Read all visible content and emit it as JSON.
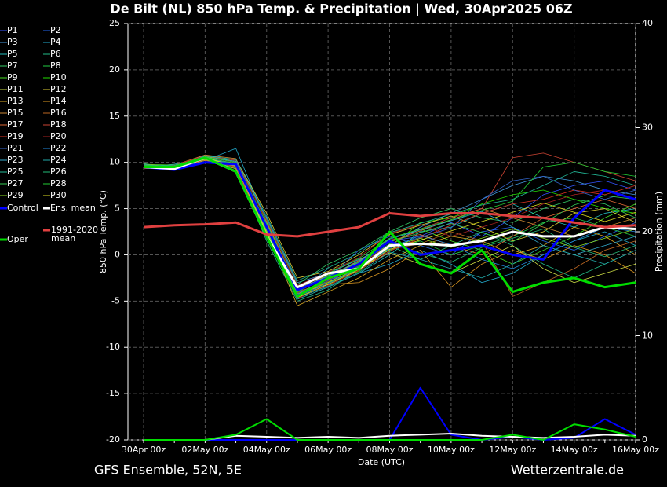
{
  "chart_data": {
    "type": "line",
    "title": "De Bilt  (NL)  850 hPa Temp. & Precipitation | Wed, 30Apr2025 06Z",
    "xlabel": "Date (UTC)",
    "ylabel": "850 hPa Temp. (°C)",
    "y2label": "Precipitation (mm)",
    "source": "GFS Ensemble, 52N, 5E",
    "credit": "Wetterzentrale.de",
    "x": [
      "30Apr 00z",
      null,
      "02May 00z",
      null,
      "04May 00z",
      null,
      "06May 00z",
      null,
      "08May 00z",
      null,
      "10May 00z",
      null,
      "12May 00z",
      null,
      "14May 00z",
      null,
      "16May 00z"
    ],
    "ylim": [
      -20,
      25
    ],
    "yticks": [
      -20,
      -15,
      -10,
      -5,
      0,
      5,
      10,
      15,
      20,
      25
    ],
    "y2lim": [
      0,
      40
    ],
    "y2ticks": [
      0,
      10,
      20,
      30,
      40
    ],
    "grid": true,
    "series": [
      {
        "name": "P1",
        "color": "#3355ff",
        "values": [
          9.8,
          9.5,
          10.4,
          9.6,
          2.5,
          -4.2,
          -3.0,
          -1.0,
          1.5,
          2.0,
          3.5,
          2.0,
          4.0,
          6.5,
          7.5,
          8.0,
          7.0
        ]
      },
      {
        "name": "P2",
        "color": "#2266ee",
        "values": [
          9.6,
          9.4,
          10.6,
          10.0,
          3.2,
          -3.5,
          -2.5,
          0.5,
          2.0,
          1.0,
          0.0,
          2.5,
          3.0,
          1.5,
          0.5,
          2.0,
          3.5
        ]
      },
      {
        "name": "P3",
        "color": "#4499dd",
        "values": [
          9.4,
          9.6,
          10.8,
          10.2,
          4.0,
          -3.0,
          -2.0,
          -0.5,
          1.0,
          3.0,
          4.5,
          6.0,
          7.5,
          8.5,
          8.0,
          7.0,
          6.5
        ]
      },
      {
        "name": "P4",
        "color": "#22aacc",
        "values": [
          9.7,
          9.3,
          10.2,
          11.5,
          3.5,
          -4.0,
          -1.5,
          -2.0,
          -1.0,
          0.5,
          -1.0,
          -3.0,
          -2.0,
          0.0,
          1.5,
          2.5,
          1.0
        ]
      },
      {
        "name": "P5",
        "color": "#22bbbb",
        "values": [
          9.5,
          9.8,
          10.5,
          9.8,
          2.0,
          -4.8,
          -3.5,
          -2.0,
          0.0,
          2.5,
          3.0,
          4.5,
          5.5,
          4.0,
          3.0,
          4.5,
          5.0
        ]
      },
      {
        "name": "P6",
        "color": "#22bb88",
        "values": [
          9.9,
          9.2,
          10.3,
          9.4,
          1.5,
          -5.0,
          -3.8,
          -1.5,
          1.0,
          -0.5,
          1.0,
          2.5,
          1.0,
          -1.0,
          -2.5,
          -1.0,
          0.5
        ]
      },
      {
        "name": "P7",
        "color": "#33cc66",
        "values": [
          9.3,
          9.6,
          10.7,
          10.1,
          3.8,
          -3.2,
          -1.0,
          0.5,
          2.5,
          4.0,
          5.0,
          4.0,
          3.5,
          5.0,
          6.0,
          5.5,
          4.0
        ]
      },
      {
        "name": "P8",
        "color": "#22cc44",
        "values": [
          9.6,
          9.5,
          10.4,
          9.9,
          2.8,
          -4.5,
          -2.8,
          -1.2,
          0.5,
          1.5,
          0.0,
          1.0,
          2.0,
          3.5,
          4.0,
          3.0,
          2.0
        ]
      },
      {
        "name": "P9",
        "color": "#44dd22",
        "values": [
          9.8,
          9.7,
          10.6,
          9.7,
          2.2,
          -3.8,
          -2.2,
          -0.8,
          1.8,
          2.8,
          1.5,
          0.5,
          -1.0,
          0.5,
          2.0,
          4.0,
          5.5
        ]
      },
      {
        "name": "P10",
        "color": "#22dd00",
        "values": [
          9.4,
          9.4,
          10.5,
          9.5,
          3.0,
          -4.0,
          -3.0,
          -1.8,
          0.8,
          3.5,
          4.0,
          5.5,
          6.5,
          7.0,
          6.0,
          5.0,
          4.5
        ]
      },
      {
        "name": "P11",
        "color": "#ccdd44",
        "values": [
          9.7,
          9.6,
          10.3,
          9.3,
          1.8,
          -4.6,
          -2.6,
          -1.4,
          0.2,
          -1.0,
          -2.0,
          -0.5,
          1.0,
          -1.5,
          -3.0,
          -2.0,
          -1.0
        ]
      },
      {
        "name": "P12",
        "color": "#ddcc33",
        "values": [
          9.5,
          9.5,
          10.6,
          10.3,
          4.5,
          -2.5,
          -1.8,
          0.0,
          2.2,
          3.2,
          4.2,
          3.0,
          1.5,
          2.5,
          4.5,
          5.0,
          3.5
        ]
      },
      {
        "name": "P13",
        "color": "#ddaa22",
        "values": [
          9.6,
          9.3,
          10.4,
          9.8,
          2.6,
          -5.5,
          -4.0,
          -2.5,
          -0.5,
          1.0,
          2.0,
          1.5,
          0.0,
          1.0,
          3.0,
          2.0,
          0.0
        ]
      },
      {
        "name": "P14",
        "color": "#dd9922",
        "values": [
          9.8,
          9.5,
          10.2,
          9.6,
          2.0,
          -4.2,
          -3.2,
          -3.0,
          -1.5,
          0.5,
          -3.5,
          -1.0,
          0.5,
          -0.5,
          1.0,
          0.0,
          -2.0
        ]
      },
      {
        "name": "P15",
        "color": "#cc8833",
        "values": [
          9.4,
          9.7,
          10.8,
          10.4,
          3.6,
          -3.6,
          -2.4,
          -0.6,
          1.4,
          2.6,
          3.8,
          5.0,
          4.0,
          3.0,
          2.0,
          3.0,
          4.0
        ]
      },
      {
        "name": "P16",
        "color": "#bb6622",
        "values": [
          9.7,
          9.4,
          10.5,
          9.7,
          2.4,
          -4.4,
          -2.9,
          -1.6,
          0.6,
          1.2,
          2.5,
          1.5,
          -4.5,
          -3.0,
          -1.5,
          0.5,
          1.5
        ]
      },
      {
        "name": "P17",
        "color": "#dd6633",
        "values": [
          9.5,
          9.6,
          10.4,
          9.9,
          3.1,
          -3.9,
          -2.1,
          -0.9,
          1.6,
          2.2,
          1.0,
          0.0,
          2.0,
          4.0,
          5.0,
          6.0,
          5.0
        ]
      },
      {
        "name": "P18",
        "color": "#cc4433",
        "values": [
          9.6,
          9.5,
          10.6,
          10.0,
          2.9,
          -4.1,
          -2.7,
          -1.1,
          1.1,
          2.8,
          4.0,
          5.0,
          10.5,
          11.0,
          10.0,
          9.0,
          8.0
        ]
      },
      {
        "name": "P19",
        "color": "#dd3322",
        "values": [
          9.8,
          9.3,
          10.3,
          9.5,
          2.1,
          -4.7,
          -3.3,
          -1.7,
          0.4,
          1.8,
          3.2,
          4.5,
          5.5,
          6.0,
          7.0,
          6.5,
          7.5
        ]
      },
      {
        "name": "P20",
        "color": "#aa2222",
        "values": [
          9.3,
          9.7,
          10.7,
          10.2,
          3.7,
          -3.3,
          -1.9,
          -0.3,
          2.3,
          3.3,
          2.0,
          3.0,
          4.0,
          5.5,
          6.5,
          7.0,
          6.0
        ]
      },
      {
        "name": "P21",
        "color": "#3366cc",
        "values": [
          9.6,
          9.4,
          10.5,
          9.8,
          2.7,
          -4.3,
          -2.8,
          -1.3,
          0.9,
          1.9,
          2.9,
          6.0,
          8.0,
          8.5,
          7.0,
          6.0,
          7.0
        ]
      },
      {
        "name": "P22",
        "color": "#2288dd",
        "values": [
          9.7,
          9.6,
          10.4,
          9.7,
          2.3,
          -4.5,
          -3.1,
          -1.5,
          0.7,
          2.1,
          1.1,
          -0.5,
          -1.5,
          0.0,
          1.5,
          3.0,
          2.5
        ]
      },
      {
        "name": "P23",
        "color": "#33aacc",
        "values": [
          9.5,
          9.5,
          10.6,
          10.1,
          3.3,
          -3.7,
          -2.3,
          -0.7,
          1.7,
          2.7,
          3.7,
          4.7,
          3.0,
          1.0,
          0.0,
          1.0,
          2.0
        ]
      },
      {
        "name": "P24",
        "color": "#22aaaa",
        "values": [
          9.4,
          9.6,
          10.3,
          9.6,
          2.5,
          -4.6,
          -3.4,
          -1.9,
          0.3,
          -0.5,
          -1.5,
          -2.5,
          -1.0,
          1.0,
          0.0,
          -1.0,
          0.5
        ]
      },
      {
        "name": "P25",
        "color": "#22bb99",
        "values": [
          9.8,
          9.4,
          10.7,
          10.3,
          4.2,
          -2.8,
          -1.4,
          0.2,
          2.4,
          3.4,
          4.4,
          5.4,
          6.0,
          7.5,
          9.0,
          8.5,
          7.5
        ]
      },
      {
        "name": "P26",
        "color": "#22bb77",
        "values": [
          9.6,
          9.7,
          10.4,
          9.8,
          2.8,
          -4.2,
          -2.6,
          -1.0,
          1.2,
          0.2,
          -0.8,
          0.8,
          1.8,
          2.8,
          0.8,
          -0.2,
          1.0
        ]
      },
      {
        "name": "P27",
        "color": "#33cc55",
        "values": [
          9.5,
          9.3,
          10.5,
          9.9,
          3.0,
          -4.0,
          -2.4,
          -0.8,
          1.4,
          2.4,
          3.4,
          2.4,
          1.4,
          3.4,
          5.4,
          6.4,
          6.0
        ]
      },
      {
        "name": "P28",
        "color": "#22cc33",
        "values": [
          9.7,
          9.5,
          10.6,
          10.0,
          3.4,
          -3.6,
          -2.0,
          -0.4,
          1.8,
          2.8,
          3.8,
          4.8,
          5.8,
          9.5,
          10.0,
          9.0,
          8.5
        ]
      },
      {
        "name": "P29",
        "color": "#88dd22",
        "values": [
          9.4,
          9.6,
          10.3,
          9.7,
          2.6,
          -4.4,
          -3.0,
          -1.4,
          0.8,
          1.8,
          0.8,
          1.8,
          2.8,
          1.8,
          0.8,
          1.8,
          2.8
        ]
      },
      {
        "name": "P30",
        "color": "#dddd22",
        "values": [
          9.6,
          9.4,
          10.5,
          9.6,
          2.4,
          -4.6,
          -3.2,
          -1.6,
          0.6,
          1.6,
          2.6,
          3.6,
          4.6,
          5.6,
          4.6,
          3.6,
          4.6
        ]
      },
      {
        "name": "Control",
        "color": "#0000ff",
        "values": [
          9.5,
          9.2,
          10.0,
          9.8,
          3.0,
          -3.8,
          -2.5,
          -1.0,
          1.5,
          0.0,
          0.5,
          1.0,
          0.0,
          -0.5,
          4.0,
          7.0,
          6.0
        ]
      },
      {
        "name": "Ens. mean",
        "color": "#ffffff",
        "values": [
          9.5,
          9.3,
          10.5,
          9.0,
          2.0,
          -3.5,
          -2.0,
          -1.5,
          1.0,
          1.2,
          1.0,
          1.5,
          2.5,
          2.0,
          2.0,
          3.0,
          2.8
        ]
      },
      {
        "name": "Oper",
        "color": "#00dd00",
        "values": [
          9.5,
          9.5,
          10.5,
          9.0,
          2.0,
          -4.5,
          -2.5,
          -1.5,
          2.5,
          -1.0,
          -2.0,
          0.5,
          -4.0,
          -3.0,
          -2.5,
          -3.5,
          -3.0
        ]
      },
      {
        "name": "1991-2020 mean",
        "color": "#e04040",
        "values": [
          3.0,
          3.2,
          3.3,
          3.5,
          2.2,
          2.0,
          2.5,
          3.0,
          4.5,
          4.2,
          4.5,
          4.5,
          4.2,
          4.0,
          3.5,
          3.0,
          3.2
        ]
      }
    ],
    "precip_series": [
      {
        "color": "#0000ff",
        "axis": "y2",
        "values": [
          0,
          0,
          0,
          0,
          0,
          0,
          0,
          0,
          0,
          5,
          0.5,
          0,
          0.3,
          0,
          0.2,
          2,
          0.5
        ]
      },
      {
        "color": "#ffffff",
        "axis": "y2",
        "values": [
          0,
          0,
          0,
          0.4,
          0.3,
          0.2,
          0.3,
          0.2,
          0.4,
          0.5,
          0.6,
          0.4,
          0.3,
          0.2,
          0.3,
          0.5,
          0.4
        ]
      },
      {
        "color": "#00dd00",
        "axis": "y2",
        "values": [
          0,
          0,
          0,
          0.5,
          2,
          0,
          0,
          0,
          0,
          0,
          0,
          0,
          0.5,
          0,
          1.5,
          1,
          0.3
        ]
      }
    ]
  }
}
